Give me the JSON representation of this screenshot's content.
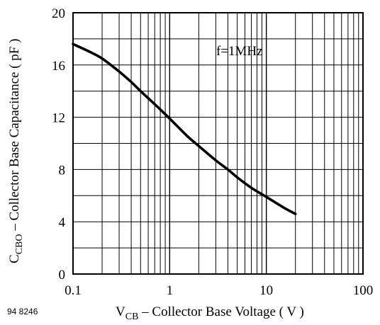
{
  "chart_data": {
    "type": "line",
    "x_scale": "log",
    "xlim": [
      0.1,
      100
    ],
    "ylim": [
      0,
      20
    ],
    "x_ticks": [
      "0.1",
      "1",
      "10",
      "100"
    ],
    "y_ticks": [
      "0",
      "4",
      "8",
      "12",
      "16",
      "20"
    ],
    "grid": true,
    "xlabel": {
      "main": "V",
      "sub": "CB",
      "rest": " – Collector Base Voltage ( V )"
    },
    "ylabel": {
      "main": "C",
      "sub": "CBO",
      "rest": " – Collector Base Capacitance ( pF )"
    },
    "annotation": "f=1MHz",
    "figure_id": "94 8246",
    "series": [
      {
        "x": [
          0.1,
          0.15,
          0.2,
          0.3,
          0.4,
          0.5,
          0.7,
          1,
          1.5,
          2,
          3,
          4,
          5,
          7,
          10,
          15,
          20
        ],
        "values": [
          17.6,
          17.0,
          16.5,
          15.5,
          14.7,
          14.0,
          13.0,
          11.9,
          10.6,
          9.8,
          8.7,
          8.0,
          7.4,
          6.6,
          5.9,
          5.1,
          4.6
        ]
      }
    ]
  }
}
